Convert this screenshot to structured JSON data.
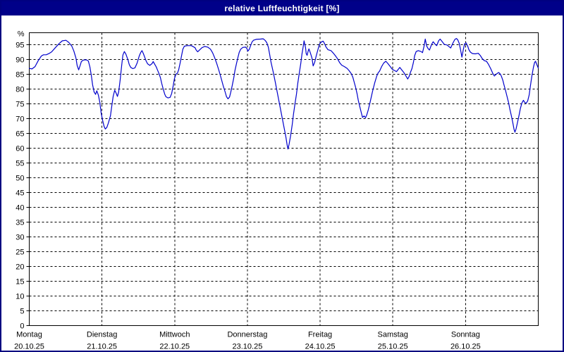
{
  "window": {
    "title": "relative Luftfeuchtigkeit [%]",
    "title_bar_color": "#000089",
    "border_color": "#000080",
    "background_color": "#ffffff"
  },
  "chart_data": {
    "type": "line",
    "title": "relative Luftfeuchtigkeit [%]",
    "ylabel": "%",
    "xlabel": "",
    "ylim": [
      0,
      99
    ],
    "ytick_step": 5,
    "ytick_labels": [
      "0",
      "5",
      "10",
      "15",
      "20",
      "25",
      "30",
      "35",
      "40",
      "45",
      "50",
      "55",
      "60",
      "65",
      "70",
      "75",
      "80",
      "85",
      "90",
      "95"
    ],
    "percent_symbol": "%",
    "grid": "dashed-black",
    "legend": "none",
    "line_color": "#0000cc",
    "x_days": [
      {
        "name": "Montag",
        "date": "20.10.25"
      },
      {
        "name": "Dienstag",
        "date": "21.10.25"
      },
      {
        "name": "Mittwoch",
        "date": "22.10.25"
      },
      {
        "name": "Donnerstag",
        "date": "23.10.25"
      },
      {
        "name": "Freitag",
        "date": "24.10.25"
      },
      {
        "name": "Samstag",
        "date": "25.10.25"
      },
      {
        "name": "Sonntag",
        "date": "26.10.25"
      }
    ],
    "series": [
      {
        "name": "relative Luftfeuchtigkeit",
        "unit": "%",
        "x_unit": "hours since Monday 00:00",
        "points": [
          [
            0,
            87
          ],
          [
            0.9,
            86.8
          ],
          [
            1.9,
            87.6
          ],
          [
            3,
            89.7
          ],
          [
            4,
            91.2
          ],
          [
            4.7,
            91.6
          ],
          [
            5.6,
            91.6
          ],
          [
            6.5,
            92
          ],
          [
            7.4,
            92.6
          ],
          [
            8.6,
            94
          ],
          [
            9.8,
            95.3
          ],
          [
            10.9,
            96.3
          ],
          [
            12.1,
            96.5
          ],
          [
            13,
            95.8
          ],
          [
            14,
            94.6
          ],
          [
            14.7,
            92.9
          ],
          [
            15.4,
            90.5
          ],
          [
            15.8,
            88
          ],
          [
            16.3,
            86.5
          ],
          [
            16.8,
            88
          ],
          [
            17.2,
            89.3
          ],
          [
            17.9,
            89.8
          ],
          [
            18.8,
            89.9
          ],
          [
            19.5,
            89.5
          ],
          [
            20,
            87.5
          ],
          [
            20.5,
            84.5
          ],
          [
            20.9,
            81.5
          ],
          [
            21.4,
            79
          ],
          [
            21.9,
            78.2
          ],
          [
            22.3,
            79.4
          ],
          [
            22.8,
            78
          ],
          [
            23.3,
            75.5
          ],
          [
            23.7,
            72
          ],
          [
            24.2,
            69.5
          ],
          [
            24.7,
            67.3
          ],
          [
            25.1,
            66.5
          ],
          [
            25.6,
            67
          ],
          [
            26.1,
            68.5
          ],
          [
            26.8,
            71
          ],
          [
            27.2,
            74
          ],
          [
            27.7,
            77.5
          ],
          [
            28.2,
            79.6
          ],
          [
            28.6,
            78.8
          ],
          [
            29.1,
            77.5
          ],
          [
            29.5,
            79
          ],
          [
            30,
            83
          ],
          [
            30.5,
            88
          ],
          [
            30.9,
            91.5
          ],
          [
            31.4,
            92.7
          ],
          [
            31.9,
            91.8
          ],
          [
            32.6,
            89.8
          ],
          [
            33,
            88.3
          ],
          [
            33.5,
            87.3
          ],
          [
            34.2,
            86.9
          ],
          [
            34.9,
            87.2
          ],
          [
            35.6,
            88.8
          ],
          [
            36.3,
            91.2
          ],
          [
            36.8,
            92.4
          ],
          [
            37.2,
            93
          ],
          [
            37.7,
            91.9
          ],
          [
            38.2,
            90.5
          ],
          [
            38.6,
            89.4
          ],
          [
            39.1,
            88.5
          ],
          [
            39.8,
            88
          ],
          [
            40.5,
            88.6
          ],
          [
            40.9,
            89.3
          ],
          [
            41.4,
            88.4
          ],
          [
            41.9,
            87.5
          ],
          [
            42.3,
            86.5
          ],
          [
            42.8,
            85.3
          ],
          [
            43.3,
            83.8
          ],
          [
            43.7,
            82
          ],
          [
            44.2,
            80
          ],
          [
            44.7,
            78.3
          ],
          [
            45.1,
            77.4
          ],
          [
            45.8,
            77
          ],
          [
            46.5,
            77.2
          ],
          [
            47,
            78.5
          ],
          [
            47.5,
            81
          ],
          [
            47.9,
            83.5
          ],
          [
            48.4,
            85
          ],
          [
            48.9,
            85.4
          ],
          [
            49.3,
            86.5
          ],
          [
            49.8,
            88.8
          ],
          [
            50.3,
            91.5
          ],
          [
            50.7,
            93.5
          ],
          [
            51.2,
            94.5
          ],
          [
            52.1,
            94.7
          ],
          [
            53.5,
            94.7
          ],
          [
            54.7,
            94
          ],
          [
            55.1,
            93.2
          ],
          [
            55.6,
            92.6
          ],
          [
            56.3,
            93.3
          ],
          [
            57,
            94
          ],
          [
            57.9,
            94.4
          ],
          [
            58.9,
            94.2
          ],
          [
            59.8,
            93.5
          ],
          [
            60.5,
            92.3
          ],
          [
            61.2,
            90.6
          ],
          [
            61.9,
            88.6
          ],
          [
            62.6,
            86.3
          ],
          [
            63.3,
            83.8
          ],
          [
            64,
            81.2
          ],
          [
            64.7,
            78.8
          ],
          [
            65.1,
            77.4
          ],
          [
            65.6,
            76.7
          ],
          [
            66.1,
            77.3
          ],
          [
            66.5,
            78.9
          ],
          [
            67,
            81.2
          ],
          [
            67.5,
            83.8
          ],
          [
            67.9,
            86.3
          ],
          [
            68.4,
            88.7
          ],
          [
            68.9,
            90.8
          ],
          [
            69.3,
            92.4
          ],
          [
            69.8,
            93.5
          ],
          [
            70.5,
            94.1
          ],
          [
            71.4,
            94.2
          ],
          [
            71.9,
            93.6
          ],
          [
            72.1,
            92.8
          ],
          [
            72.6,
            93.4
          ],
          [
            73.1,
            94.8
          ],
          [
            73.5,
            95.9
          ],
          [
            74,
            96.5
          ],
          [
            74.9,
            96.8
          ],
          [
            76.3,
            96.9
          ],
          [
            77.2,
            97
          ],
          [
            77.9,
            96.4
          ],
          [
            78.4,
            95.7
          ],
          [
            78.9,
            94.2
          ],
          [
            79.3,
            92
          ],
          [
            79.8,
            89.1
          ],
          [
            80.5,
            85.8
          ],
          [
            81.2,
            82.3
          ],
          [
            81.9,
            78.6
          ],
          [
            82.6,
            74.9
          ],
          [
            83.3,
            71.2
          ],
          [
            84,
            67.5
          ],
          [
            84.7,
            63.8
          ],
          [
            85.1,
            61.2
          ],
          [
            85.4,
            59.7
          ],
          [
            85.8,
            61.5
          ],
          [
            86.3,
            64.5
          ],
          [
            86.8,
            68
          ],
          [
            87.2,
            71.5
          ],
          [
            87.7,
            75
          ],
          [
            88.2,
            78.4
          ],
          [
            88.6,
            81.8
          ],
          [
            89.1,
            85.2
          ],
          [
            89.6,
            88.6
          ],
          [
            90,
            91.8
          ],
          [
            90.5,
            94.8
          ],
          [
            90.7,
            96.3
          ],
          [
            91.2,
            94
          ],
          [
            91.4,
            92
          ],
          [
            91.7,
            91.4
          ],
          [
            92.1,
            93
          ],
          [
            92.3,
            93.6
          ],
          [
            92.8,
            92.2
          ],
          [
            93.3,
            90.5
          ],
          [
            93.7,
            87.8
          ],
          [
            94.2,
            89
          ],
          [
            94.7,
            91.2
          ],
          [
            95.4,
            93.8
          ],
          [
            95.8,
            95.2
          ],
          [
            96.5,
            96
          ],
          [
            97,
            96.2
          ],
          [
            97.5,
            95.3
          ],
          [
            97.9,
            94.3
          ],
          [
            98.6,
            93.3
          ],
          [
            99.6,
            93
          ],
          [
            100.3,
            92.2
          ],
          [
            101,
            91.3
          ],
          [
            101.7,
            90.3
          ],
          [
            102.4,
            89
          ],
          [
            103.1,
            88.1
          ],
          [
            104,
            87.6
          ],
          [
            104.9,
            87
          ],
          [
            105.6,
            86.2
          ],
          [
            106.3,
            85.2
          ],
          [
            106.8,
            84
          ],
          [
            107.2,
            82.5
          ],
          [
            107.7,
            80.6
          ],
          [
            108.2,
            78.4
          ],
          [
            108.6,
            76.2
          ],
          [
            109.1,
            74
          ],
          [
            109.6,
            72
          ],
          [
            110,
            70.4
          ],
          [
            110.5,
            70.9
          ],
          [
            111,
            70.3
          ],
          [
            111.4,
            71.3
          ],
          [
            111.9,
            73
          ],
          [
            112.6,
            76
          ],
          [
            113.3,
            79.2
          ],
          [
            114,
            82
          ],
          [
            114.7,
            84.4
          ],
          [
            115.2,
            85.6
          ],
          [
            115.6,
            86
          ],
          [
            116.3,
            87.6
          ],
          [
            117,
            88.8
          ],
          [
            117.7,
            89.4
          ],
          [
            118.4,
            88.6
          ],
          [
            119.1,
            87.7
          ],
          [
            119.8,
            86.7
          ],
          [
            120.7,
            86.2
          ],
          [
            121.2,
            85.9
          ],
          [
            121.9,
            86.8
          ],
          [
            122.3,
            87.3
          ],
          [
            123,
            86.4
          ],
          [
            123.7,
            85.5
          ],
          [
            124.4,
            84.3
          ],
          [
            124.9,
            83.4
          ],
          [
            125.4,
            84.3
          ],
          [
            125.8,
            85.6
          ],
          [
            126.3,
            86.9
          ],
          [
            126.8,
            89
          ],
          [
            127.2,
            91.3
          ],
          [
            127.7,
            92.7
          ],
          [
            128.4,
            93
          ],
          [
            129.3,
            92.7
          ],
          [
            129.8,
            92.3
          ],
          [
            130.3,
            94.5
          ],
          [
            130.7,
            96.9
          ],
          [
            131.2,
            94.5
          ],
          [
            131.7,
            93.6
          ],
          [
            132.1,
            93.2
          ],
          [
            132.8,
            95.1
          ],
          [
            133.3,
            96
          ],
          [
            134,
            95.1
          ],
          [
            134.5,
            94.7
          ],
          [
            135.1,
            96.3
          ],
          [
            135.6,
            96.9
          ],
          [
            136.3,
            96
          ],
          [
            137,
            95.1
          ],
          [
            137.9,
            94.9
          ],
          [
            138.6,
            94.3
          ],
          [
            139.1,
            93.9
          ],
          [
            139.8,
            95.5
          ],
          [
            140.5,
            96.8
          ],
          [
            141,
            97.1
          ],
          [
            141.4,
            96.7
          ],
          [
            141.9,
            95.5
          ],
          [
            142.3,
            93.5
          ],
          [
            142.8,
            90.8
          ],
          [
            143.3,
            93.5
          ],
          [
            143.7,
            95.3
          ],
          [
            144.2,
            95.6
          ],
          [
            144.7,
            94.5
          ],
          [
            145.1,
            93.3
          ],
          [
            145.6,
            92.5
          ],
          [
            146.3,
            92
          ],
          [
            147.2,
            91.9
          ],
          [
            148.2,
            92.1
          ],
          [
            148.9,
            91.3
          ],
          [
            149.5,
            90.3
          ],
          [
            150.2,
            89.6
          ],
          [
            150.9,
            89.4
          ],
          [
            151.6,
            88.3
          ],
          [
            152.3,
            86.9
          ],
          [
            153,
            85.3
          ],
          [
            153.5,
            84.4
          ],
          [
            154.2,
            85.1
          ],
          [
            154.9,
            85.6
          ],
          [
            155.3,
            85.3
          ],
          [
            155.8,
            84.4
          ],
          [
            156.3,
            83
          ],
          [
            156.7,
            81.4
          ],
          [
            157.2,
            79.5
          ],
          [
            157.7,
            77.5
          ],
          [
            158.2,
            75.4
          ],
          [
            158.6,
            73.3
          ],
          [
            159.1,
            71
          ],
          [
            159.6,
            68.6
          ],
          [
            160,
            66.4
          ],
          [
            160.3,
            65.4
          ],
          [
            160.7,
            66.6
          ],
          [
            161.2,
            69
          ],
          [
            161.7,
            71.3
          ],
          [
            162.1,
            73.4
          ],
          [
            162.6,
            75.3
          ],
          [
            163.1,
            76.2
          ],
          [
            163.5,
            75.5
          ],
          [
            164,
            75.2
          ],
          [
            164.5,
            76
          ],
          [
            165,
            78
          ],
          [
            165.4,
            81
          ],
          [
            165.9,
            84.5
          ],
          [
            166.4,
            87.3
          ],
          [
            166.8,
            89
          ],
          [
            167.1,
            89.4
          ],
          [
            167.5,
            88.3
          ],
          [
            168,
            87.1
          ]
        ]
      }
    ]
  }
}
